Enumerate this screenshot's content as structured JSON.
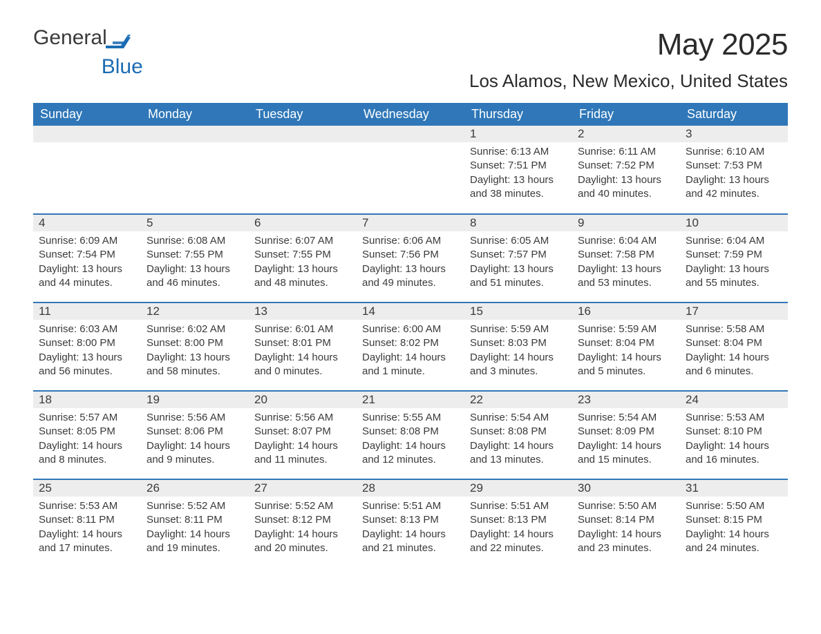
{
  "brand": {
    "word1": "General",
    "word2": "Blue",
    "accent_color": "#1b6cb3"
  },
  "title": "May 2025",
  "location": "Los Alamos, New Mexico, United States",
  "colors": {
    "header_bg": "#2f77b8",
    "header_text": "#ffffff",
    "daynum_bg": "#ededed",
    "text": "#3a3a3a",
    "row_border": "#2f77b8",
    "page_bg": "#ffffff"
  },
  "fonts": {
    "body_pt": 15,
    "daynum_pt": 17,
    "header_pt": 18,
    "title_pt": 44,
    "location_pt": 26
  },
  "day_labels": [
    "Sunday",
    "Monday",
    "Tuesday",
    "Wednesday",
    "Thursday",
    "Friday",
    "Saturday"
  ],
  "weeks": [
    [
      null,
      null,
      null,
      null,
      {
        "n": "1",
        "sr": "Sunrise: 6:13 AM",
        "ss": "Sunset: 7:51 PM",
        "dl": "Daylight: 13 hours and 38 minutes."
      },
      {
        "n": "2",
        "sr": "Sunrise: 6:11 AM",
        "ss": "Sunset: 7:52 PM",
        "dl": "Daylight: 13 hours and 40 minutes."
      },
      {
        "n": "3",
        "sr": "Sunrise: 6:10 AM",
        "ss": "Sunset: 7:53 PM",
        "dl": "Daylight: 13 hours and 42 minutes."
      }
    ],
    [
      {
        "n": "4",
        "sr": "Sunrise: 6:09 AM",
        "ss": "Sunset: 7:54 PM",
        "dl": "Daylight: 13 hours and 44 minutes."
      },
      {
        "n": "5",
        "sr": "Sunrise: 6:08 AM",
        "ss": "Sunset: 7:55 PM",
        "dl": "Daylight: 13 hours and 46 minutes."
      },
      {
        "n": "6",
        "sr": "Sunrise: 6:07 AM",
        "ss": "Sunset: 7:55 PM",
        "dl": "Daylight: 13 hours and 48 minutes."
      },
      {
        "n": "7",
        "sr": "Sunrise: 6:06 AM",
        "ss": "Sunset: 7:56 PM",
        "dl": "Daylight: 13 hours and 49 minutes."
      },
      {
        "n": "8",
        "sr": "Sunrise: 6:05 AM",
        "ss": "Sunset: 7:57 PM",
        "dl": "Daylight: 13 hours and 51 minutes."
      },
      {
        "n": "9",
        "sr": "Sunrise: 6:04 AM",
        "ss": "Sunset: 7:58 PM",
        "dl": "Daylight: 13 hours and 53 minutes."
      },
      {
        "n": "10",
        "sr": "Sunrise: 6:04 AM",
        "ss": "Sunset: 7:59 PM",
        "dl": "Daylight: 13 hours and 55 minutes."
      }
    ],
    [
      {
        "n": "11",
        "sr": "Sunrise: 6:03 AM",
        "ss": "Sunset: 8:00 PM",
        "dl": "Daylight: 13 hours and 56 minutes."
      },
      {
        "n": "12",
        "sr": "Sunrise: 6:02 AM",
        "ss": "Sunset: 8:00 PM",
        "dl": "Daylight: 13 hours and 58 minutes."
      },
      {
        "n": "13",
        "sr": "Sunrise: 6:01 AM",
        "ss": "Sunset: 8:01 PM",
        "dl": "Daylight: 14 hours and 0 minutes."
      },
      {
        "n": "14",
        "sr": "Sunrise: 6:00 AM",
        "ss": "Sunset: 8:02 PM",
        "dl": "Daylight: 14 hours and 1 minute."
      },
      {
        "n": "15",
        "sr": "Sunrise: 5:59 AM",
        "ss": "Sunset: 8:03 PM",
        "dl": "Daylight: 14 hours and 3 minutes."
      },
      {
        "n": "16",
        "sr": "Sunrise: 5:59 AM",
        "ss": "Sunset: 8:04 PM",
        "dl": "Daylight: 14 hours and 5 minutes."
      },
      {
        "n": "17",
        "sr": "Sunrise: 5:58 AM",
        "ss": "Sunset: 8:04 PM",
        "dl": "Daylight: 14 hours and 6 minutes."
      }
    ],
    [
      {
        "n": "18",
        "sr": "Sunrise: 5:57 AM",
        "ss": "Sunset: 8:05 PM",
        "dl": "Daylight: 14 hours and 8 minutes."
      },
      {
        "n": "19",
        "sr": "Sunrise: 5:56 AM",
        "ss": "Sunset: 8:06 PM",
        "dl": "Daylight: 14 hours and 9 minutes."
      },
      {
        "n": "20",
        "sr": "Sunrise: 5:56 AM",
        "ss": "Sunset: 8:07 PM",
        "dl": "Daylight: 14 hours and 11 minutes."
      },
      {
        "n": "21",
        "sr": "Sunrise: 5:55 AM",
        "ss": "Sunset: 8:08 PM",
        "dl": "Daylight: 14 hours and 12 minutes."
      },
      {
        "n": "22",
        "sr": "Sunrise: 5:54 AM",
        "ss": "Sunset: 8:08 PM",
        "dl": "Daylight: 14 hours and 13 minutes."
      },
      {
        "n": "23",
        "sr": "Sunrise: 5:54 AM",
        "ss": "Sunset: 8:09 PM",
        "dl": "Daylight: 14 hours and 15 minutes."
      },
      {
        "n": "24",
        "sr": "Sunrise: 5:53 AM",
        "ss": "Sunset: 8:10 PM",
        "dl": "Daylight: 14 hours and 16 minutes."
      }
    ],
    [
      {
        "n": "25",
        "sr": "Sunrise: 5:53 AM",
        "ss": "Sunset: 8:11 PM",
        "dl": "Daylight: 14 hours and 17 minutes."
      },
      {
        "n": "26",
        "sr": "Sunrise: 5:52 AM",
        "ss": "Sunset: 8:11 PM",
        "dl": "Daylight: 14 hours and 19 minutes."
      },
      {
        "n": "27",
        "sr": "Sunrise: 5:52 AM",
        "ss": "Sunset: 8:12 PM",
        "dl": "Daylight: 14 hours and 20 minutes."
      },
      {
        "n": "28",
        "sr": "Sunrise: 5:51 AM",
        "ss": "Sunset: 8:13 PM",
        "dl": "Daylight: 14 hours and 21 minutes."
      },
      {
        "n": "29",
        "sr": "Sunrise: 5:51 AM",
        "ss": "Sunset: 8:13 PM",
        "dl": "Daylight: 14 hours and 22 minutes."
      },
      {
        "n": "30",
        "sr": "Sunrise: 5:50 AM",
        "ss": "Sunset: 8:14 PM",
        "dl": "Daylight: 14 hours and 23 minutes."
      },
      {
        "n": "31",
        "sr": "Sunrise: 5:50 AM",
        "ss": "Sunset: 8:15 PM",
        "dl": "Daylight: 14 hours and 24 minutes."
      }
    ]
  ]
}
